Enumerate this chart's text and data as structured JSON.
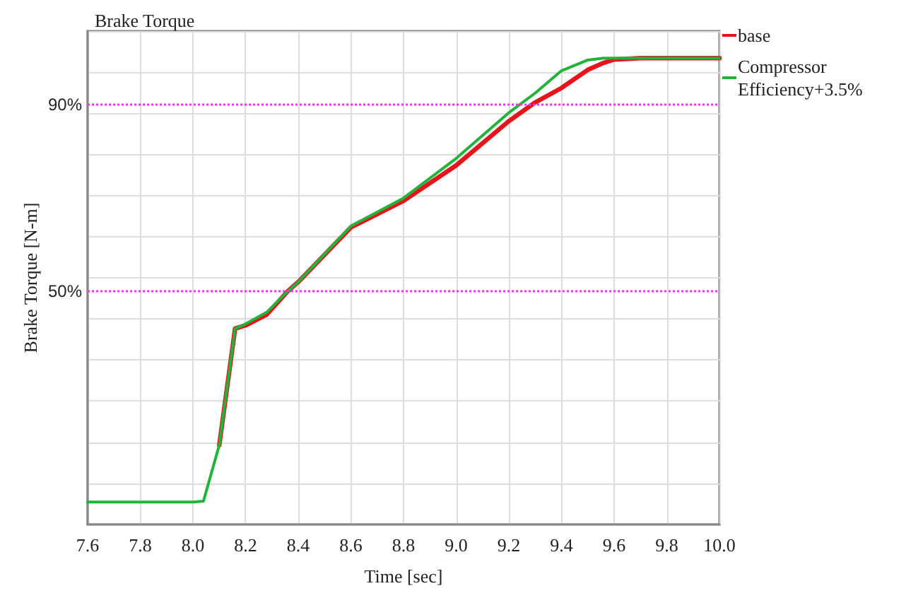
{
  "chart_data": {
    "type": "line",
    "title": "Brake Torque",
    "xlabel": "Time [sec]",
    "ylabel": "Brake Torque [N-m]",
    "x": [
      7.6,
      8.0,
      8.04,
      8.1,
      8.16,
      8.2,
      8.28,
      8.36,
      8.4,
      8.6,
      8.8,
      9.0,
      9.2,
      9.3,
      9.4,
      9.5,
      9.56,
      9.6,
      9.7,
      10.0
    ],
    "series": [
      {
        "name": "base",
        "color": "#e8141c",
        "values": [
          null,
          null,
          null,
          17,
          42,
          42.7,
          45,
          50,
          52,
          63.7,
          69.4,
          77,
          86.5,
          90.5,
          93.6,
          97.5,
          99,
          99.7,
          100,
          100
        ]
      },
      {
        "name": "Compressor Efficiency+3.5%",
        "color": "#22b43a",
        "values": [
          4.8,
          4.8,
          5,
          17,
          42,
          43,
          45.5,
          50,
          52,
          64,
          70,
          78.5,
          88.3,
          92.5,
          97.3,
          99.6,
          100,
          100,
          100,
          100
        ]
      }
    ],
    "xlim": [
      7.6,
      10.0
    ],
    "xticks": [
      7.6,
      7.8,
      {
        "value": 8,
        "label": "8.0"
      },
      8.2,
      8.4,
      8.6,
      8.8,
      {
        "value": 9,
        "label": "9.0"
      },
      9.2,
      9.4,
      9.6,
      9.8,
      {
        "value": 10,
        "label": "10.0"
      }
    ],
    "ylim": [
      0,
      105.8
    ],
    "yticks": [
      {
        "value": 0,
        "label": null
      },
      {
        "value": 8.8,
        "label": null
      },
      {
        "value": 17.6,
        "label": null
      },
      {
        "value": 26.5,
        "label": null
      },
      {
        "value": 35.3,
        "label": null
      },
      {
        "value": 44.1,
        "label": null
      },
      {
        "value": 52.9,
        "label": null
      },
      {
        "value": 61.7,
        "label": null
      },
      {
        "value": 70.5,
        "label": null
      },
      {
        "value": 79.4,
        "label": null
      },
      {
        "value": 88.2,
        "label": null
      },
      {
        "value": 97.0,
        "label": null
      },
      {
        "value": 105.8,
        "label": null
      }
    ],
    "ref_lines": [
      {
        "axis": "y",
        "value": 90,
        "label": "90%",
        "color": "#e040e0",
        "line_style": "dotted"
      },
      {
        "axis": "y",
        "value": 50,
        "label": "50%",
        "color": "#e040e0",
        "line_style": "dotted"
      }
    ],
    "tick_labels": "x",
    "grid": true,
    "legend": "right",
    "marker": "none",
    "line_style": "solid"
  }
}
